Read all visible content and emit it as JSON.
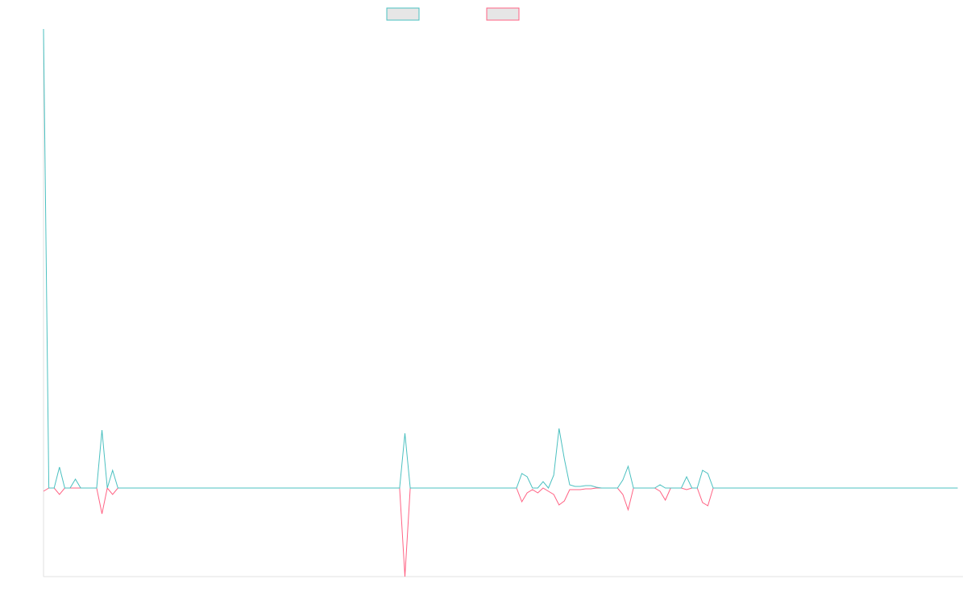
{
  "chart_data": {
    "type": "line",
    "xlim": [
      0,
      173
    ],
    "ylim": [
      -110,
      570
    ],
    "series": [
      {
        "color": "#4bc0c0",
        "values": [
          570,
          0,
          0,
          26,
          0,
          0,
          11,
          0,
          0,
          0,
          0,
          72,
          0,
          22,
          0,
          0,
          0,
          0,
          0,
          0,
          0,
          0,
          0,
          0,
          0,
          0,
          0,
          0,
          0,
          0,
          0,
          0,
          0,
          0,
          0,
          0,
          0,
          0,
          0,
          0,
          0,
          0,
          0,
          0,
          0,
          0,
          0,
          0,
          0,
          0,
          0,
          0,
          0,
          0,
          0,
          0,
          0,
          0,
          0,
          0,
          0,
          0,
          0,
          0,
          0,
          0,
          0,
          0,
          68,
          0,
          0,
          0,
          0,
          0,
          0,
          0,
          0,
          0,
          0,
          0,
          0,
          0,
          0,
          0,
          0,
          0,
          0,
          0,
          0,
          0,
          18,
          14,
          0,
          0,
          8,
          0,
          16,
          74,
          36,
          4,
          2,
          2,
          3,
          3,
          1,
          0,
          0,
          0,
          0,
          10,
          27,
          0,
          0,
          0,
          0,
          0,
          4,
          0,
          0,
          0,
          0,
          14,
          0,
          0,
          22,
          18,
          0,
          0,
          0,
          0,
          0,
          0,
          0,
          0,
          0,
          0,
          0,
          0,
          0,
          0,
          0,
          0,
          0,
          0,
          0,
          0,
          0,
          0,
          0,
          0,
          0,
          0,
          0,
          0,
          0,
          0,
          0,
          0,
          0,
          0,
          0,
          0,
          0,
          0,
          0,
          0,
          0,
          0,
          0,
          0,
          0,
          0,
          0
        ]
      },
      {
        "color": "#ff6384",
        "values": [
          -4,
          0,
          0,
          -8,
          0,
          0,
          0,
          0,
          0,
          0,
          0,
          -32,
          0,
          -8,
          0,
          0,
          0,
          0,
          0,
          0,
          0,
          0,
          0,
          0,
          0,
          0,
          0,
          0,
          0,
          0,
          0,
          0,
          0,
          0,
          0,
          0,
          0,
          0,
          0,
          0,
          0,
          0,
          0,
          0,
          0,
          0,
          0,
          0,
          0,
          0,
          0,
          0,
          0,
          0,
          0,
          0,
          0,
          0,
          0,
          0,
          0,
          0,
          0,
          0,
          0,
          0,
          0,
          0,
          -110,
          0,
          0,
          0,
          0,
          0,
          0,
          0,
          0,
          0,
          0,
          0,
          0,
          0,
          0,
          0,
          0,
          0,
          0,
          0,
          0,
          0,
          -17,
          -6,
          -2,
          -6,
          0,
          -4,
          -8,
          -21,
          -16,
          -2,
          -2,
          -2,
          -1,
          -1,
          0,
          0,
          0,
          0,
          0,
          -8,
          -27,
          0,
          0,
          0,
          0,
          0,
          -4,
          -15,
          0,
          0,
          0,
          -2,
          0,
          0,
          -18,
          -22,
          0,
          0,
          0,
          0,
          0,
          0,
          0,
          0,
          0,
          0,
          0,
          0,
          0,
          0,
          0,
          0,
          0,
          0,
          0,
          0,
          0,
          0,
          0,
          0,
          0,
          0,
          0,
          0,
          0,
          0,
          0,
          0,
          0,
          0,
          0,
          0,
          0,
          0,
          0,
          0,
          0,
          0,
          0,
          0,
          0,
          0,
          0
        ]
      }
    ]
  }
}
